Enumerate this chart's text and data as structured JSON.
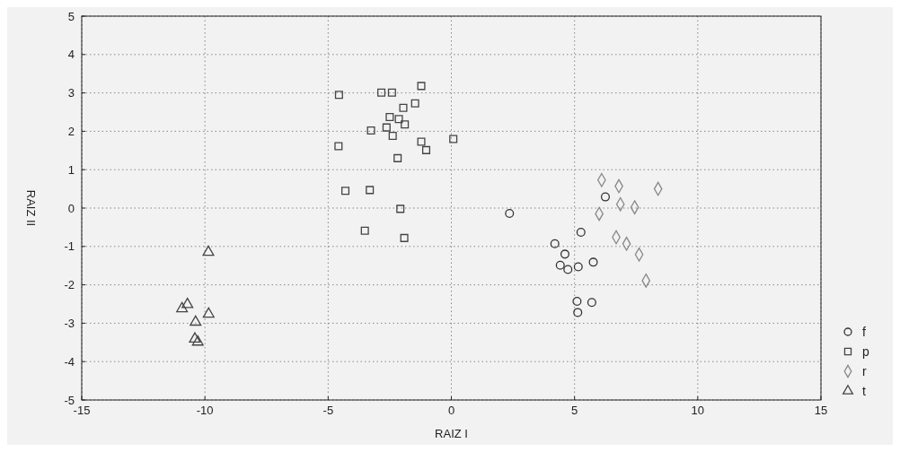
{
  "chart_data": {
    "type": "scatter",
    "xlabel": "RAIZ I",
    "ylabel": "RAIZ II",
    "xlim": [
      -15,
      15
    ],
    "ylim": [
      -5,
      5
    ],
    "xticks": [
      -15,
      -10,
      -5,
      0,
      5,
      10,
      15
    ],
    "yticks": [
      -5,
      -4,
      -3,
      -2,
      -1,
      0,
      1,
      2,
      3,
      4,
      5
    ],
    "grid": true,
    "legend": "right",
    "series": [
      {
        "name": "f",
        "color": "#333333",
        "marker": "circle",
        "x": [
          2.36,
          6.25,
          5.26,
          4.2,
          4.61,
          4.42,
          4.73,
          5.15,
          5.76,
          5.1,
          5.7,
          5.13
        ],
        "values": [
          -0.14,
          0.29,
          -0.63,
          -0.93,
          -1.2,
          -1.49,
          -1.6,
          -1.53,
          -1.41,
          -2.43,
          -2.46,
          -2.72
        ]
      },
      {
        "name": "p",
        "color": "#444444",
        "marker": "square",
        "x": [
          -4.56,
          -2.84,
          -2.41,
          -1.22,
          -1.47,
          -1.95,
          -2.5,
          -2.13,
          -1.89,
          -2.63,
          -2.38,
          -3.26,
          -4.58,
          -1.22,
          -1.02,
          0.08,
          -2.18,
          -4.3,
          -3.31,
          -2.07,
          -3.51,
          -1.91
        ],
        "values": [
          2.95,
          3.01,
          3.01,
          3.18,
          2.73,
          2.61,
          2.37,
          2.32,
          2.18,
          2.1,
          1.88,
          2.02,
          1.61,
          1.73,
          1.51,
          1.8,
          1.3,
          0.45,
          0.47,
          -0.02,
          -0.59,
          -0.78
        ]
      },
      {
        "name": "r",
        "color": "#888888",
        "marker": "diamond",
        "x": [
          6.1,
          6.8,
          8.39,
          6.86,
          7.44,
          6.0,
          6.69,
          7.11,
          7.62,
          7.9
        ],
        "values": [
          0.73,
          0.57,
          0.5,
          0.1,
          0.02,
          -0.15,
          -0.76,
          -0.93,
          -1.21,
          -1.89
        ]
      },
      {
        "name": "t",
        "color": "#444444",
        "marker": "triangle",
        "x": [
          -9.86,
          -10.71,
          -10.93,
          -9.85,
          -10.38,
          -10.41,
          -10.29
        ],
        "values": [
          -1.15,
          -2.51,
          -2.62,
          -2.76,
          -2.97,
          -3.41,
          -3.49
        ]
      }
    ]
  }
}
